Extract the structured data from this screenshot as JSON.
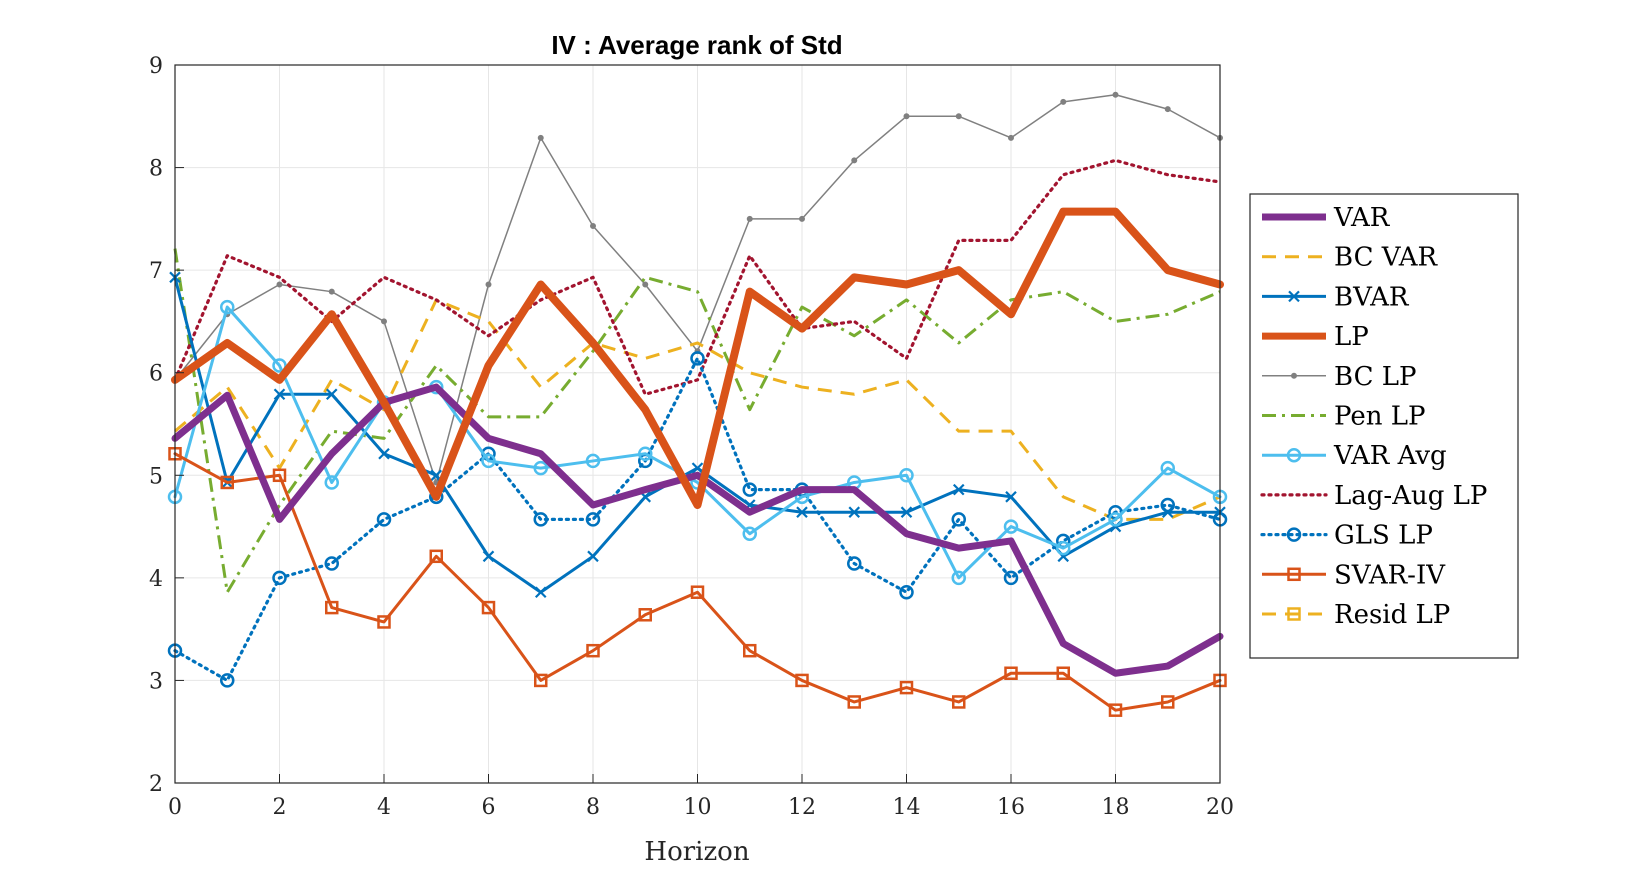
{
  "chart_data": {
    "type": "line",
    "title": "IV : Average rank of Std",
    "xlabel": "Horizon",
    "ylabel": "",
    "xlim": [
      0,
      20
    ],
    "ylim": [
      2,
      9
    ],
    "xticks": [
      0,
      2,
      4,
      6,
      8,
      10,
      12,
      14,
      16,
      18,
      20
    ],
    "yticks": [
      2,
      3,
      4,
      5,
      6,
      7,
      8,
      9
    ],
    "grid": true,
    "legend_position": "right, outside",
    "x": [
      0,
      1,
      2,
      3,
      4,
      5,
      6,
      7,
      8,
      9,
      10,
      11,
      12,
      13,
      14,
      15,
      16,
      17,
      18,
      19,
      20
    ],
    "series": [
      {
        "name": "VAR",
        "color": "#7E2F8E",
        "style": "solid-thick",
        "marker": "none",
        "values": [
          5.36,
          5.78,
          4.57,
          5.21,
          5.71,
          5.86,
          5.36,
          5.21,
          4.71,
          4.86,
          5.0,
          4.64,
          4.86,
          4.86,
          4.43,
          4.29,
          4.36,
          3.36,
          3.07,
          3.14,
          3.43
        ]
      },
      {
        "name": "BC VAR",
        "color": "#EDB120",
        "style": "dashed",
        "marker": "none",
        "values": [
          5.43,
          5.86,
          5.07,
          5.93,
          5.64,
          6.71,
          6.5,
          5.86,
          6.29,
          6.14,
          6.29,
          6.0,
          5.86,
          5.79,
          5.93,
          5.43,
          5.43,
          4.79,
          4.57,
          4.57,
          4.79
        ]
      },
      {
        "name": "BVAR",
        "color": "#0072BD",
        "style": "solid",
        "marker": "x",
        "values": [
          6.93,
          4.93,
          5.79,
          5.79,
          5.21,
          5.0,
          4.21,
          3.86,
          4.21,
          4.79,
          5.07,
          4.71,
          4.64,
          4.64,
          4.64,
          4.86,
          4.79,
          4.21,
          4.5,
          4.64,
          4.64
        ]
      },
      {
        "name": "LP",
        "color": "#D95319",
        "style": "solid-extra-thick",
        "marker": "none",
        "values": [
          5.93,
          6.29,
          5.93,
          6.57,
          5.71,
          4.79,
          6.07,
          6.86,
          6.29,
          5.64,
          4.71,
          6.79,
          6.43,
          6.93,
          6.86,
          7.0,
          6.57,
          7.57,
          7.57,
          7.0,
          6.86
        ]
      },
      {
        "name": "BC LP",
        "color": "#808080",
        "style": "solid-thin",
        "marker": "dot",
        "values": [
          5.93,
          6.57,
          6.86,
          6.79,
          6.5,
          4.93,
          6.86,
          8.29,
          7.43,
          6.86,
          6.21,
          7.5,
          7.5,
          8.07,
          8.5,
          8.5,
          8.29,
          8.64,
          8.71,
          8.57,
          8.29
        ]
      },
      {
        "name": "Pen LP",
        "color": "#77AC30",
        "style": "dashdot",
        "marker": "none",
        "values": [
          7.21,
          3.86,
          4.71,
          5.43,
          5.36,
          6.07,
          5.57,
          5.57,
          6.21,
          6.93,
          6.79,
          5.64,
          6.64,
          6.36,
          6.71,
          6.29,
          6.71,
          6.79,
          6.5,
          6.57,
          6.79
        ]
      },
      {
        "name": "VAR Avg",
        "color": "#4DBEEE",
        "style": "solid",
        "marker": "circle",
        "values": [
          4.79,
          6.64,
          6.07,
          4.93,
          5.71,
          5.86,
          5.14,
          5.07,
          5.14,
          5.21,
          4.93,
          4.43,
          4.79,
          4.93,
          5.0,
          4.0,
          4.5,
          4.29,
          4.57,
          5.07,
          4.79
        ]
      },
      {
        "name": "Lag-Aug LP",
        "color": "#A2142F",
        "style": "dotted",
        "marker": "none",
        "values": [
          5.93,
          7.14,
          6.93,
          6.5,
          6.93,
          6.71,
          6.36,
          6.71,
          6.93,
          5.79,
          5.93,
          7.14,
          6.43,
          6.5,
          6.14,
          7.29,
          7.29,
          7.93,
          8.07,
          7.93,
          7.86
        ]
      },
      {
        "name": "GLS LP",
        "color": "#0072BD",
        "style": "dotted",
        "marker": "circle",
        "values": [
          3.29,
          3.0,
          4.0,
          4.14,
          4.57,
          4.79,
          5.21,
          4.57,
          4.57,
          5.14,
          6.14,
          4.86,
          4.86,
          4.14,
          3.86,
          4.57,
          4.0,
          4.36,
          4.64,
          4.71,
          4.57
        ]
      },
      {
        "name": "SVAR-IV",
        "color": "#D95319",
        "style": "solid",
        "marker": "square",
        "values": [
          5.21,
          4.93,
          5.0,
          3.71,
          3.57,
          4.21,
          3.71,
          3.0,
          3.29,
          3.64,
          3.86,
          3.29,
          3.0,
          2.79,
          2.93,
          2.79,
          3.07,
          3.07,
          2.71,
          2.79,
          3.0
        ]
      },
      {
        "name": "Resid LP",
        "color": "#EDB120",
        "style": "dashed",
        "marker": "square",
        "values": [
          null,
          null,
          null,
          null,
          null,
          null,
          null,
          null,
          null,
          null,
          null,
          null,
          null,
          null,
          null,
          null,
          null,
          null,
          null,
          null,
          null
        ]
      }
    ]
  }
}
